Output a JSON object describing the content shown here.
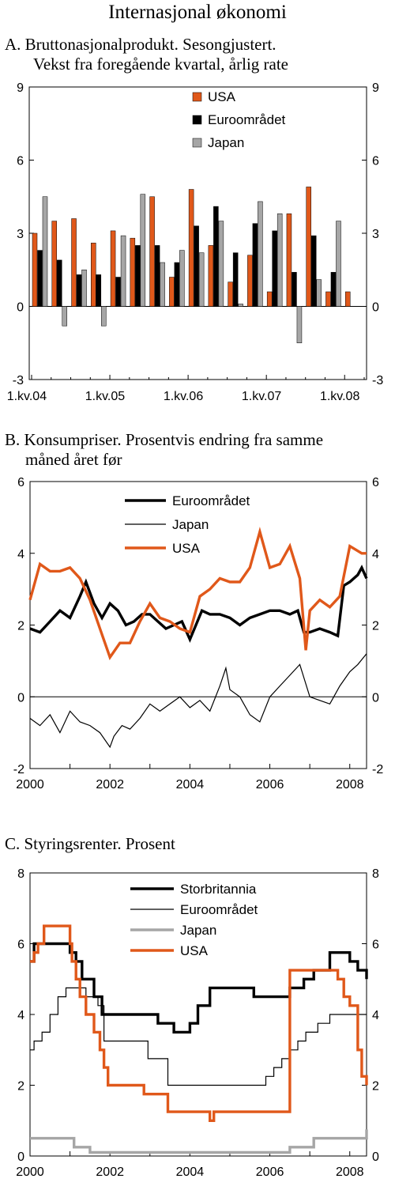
{
  "page_title": "Internasjonal økonomi",
  "colors": {
    "usa": "#e0581a",
    "euro": "#000000",
    "japan": "#a6a6a6",
    "uk": "#000000"
  },
  "chart_data": [
    {
      "id": "A",
      "type": "bar",
      "title_line1": "A.  Bruttonasjonalprodukt. Sesongjustert.",
      "title_line2": "Vekst fra foregående kvartal, årlig rate",
      "ylim": [
        -3,
        9
      ],
      "yticks": [
        -3,
        0,
        3,
        6,
        9
      ],
      "tick_labels": [
        "1.kv.04",
        "1.kv.05",
        "1.kv.06",
        "1.kv.07",
        "1.kv.08"
      ],
      "categories": [
        "1.kv.04",
        "2.kv.04",
        "3.kv.04",
        "4.kv.04",
        "1.kv.05",
        "2.kv.05",
        "3.kv.05",
        "4.kv.05",
        "1.kv.06",
        "2.kv.06",
        "3.kv.06",
        "4.kv.06",
        "1.kv.07",
        "2.kv.07",
        "3.kv.07",
        "4.kv.07",
        "1.kv.08"
      ],
      "series": [
        {
          "name": "USA",
          "color": "#e0581a",
          "values": [
            3.0,
            3.5,
            3.6,
            2.6,
            3.1,
            2.8,
            4.5,
            1.2,
            4.8,
            2.5,
            1.0,
            2.1,
            0.6,
            3.8,
            4.9,
            0.6,
            0.6
          ]
        },
        {
          "name": "Euroområdet",
          "color": "#000000",
          "values": [
            2.3,
            1.9,
            1.3,
            1.3,
            1.2,
            2.5,
            2.5,
            1.8,
            3.3,
            4.1,
            2.2,
            3.4,
            3.1,
            1.4,
            2.9,
            1.4,
            null
          ]
        },
        {
          "name": "Japan",
          "color": "#a6a6a6",
          "values": [
            4.5,
            -0.8,
            1.5,
            -0.8,
            2.9,
            4.6,
            1.8,
            2.3,
            2.2,
            3.5,
            0.1,
            4.3,
            3.8,
            -1.5,
            1.1,
            3.5,
            null
          ]
        }
      ]
    },
    {
      "id": "B",
      "type": "line",
      "title_line1": "B. Konsumpriser. Prosentvis endring fra samme",
      "title_line2": "måned året før",
      "ylim": [
        -2,
        6
      ],
      "yticks": [
        -2,
        0,
        2,
        4,
        6
      ],
      "xlim": [
        2000,
        2008.42
      ],
      "xticks": [
        2000,
        2002,
        2004,
        2006,
        2008
      ],
      "series": [
        {
          "name": "Euroområdet",
          "color": "#000000",
          "width": 3.4,
          "x": [
            2000,
            2000.25,
            2000.5,
            2000.75,
            2001,
            2001.25,
            2001.4,
            2001.6,
            2001.8,
            2002,
            2002.2,
            2002.4,
            2002.6,
            2002.8,
            2003,
            2003.2,
            2003.4,
            2003.6,
            2003.8,
            2004,
            2004.15,
            2004.3,
            2004.5,
            2004.75,
            2005,
            2005.25,
            2005.5,
            2005.75,
            2006,
            2006.25,
            2006.5,
            2006.7,
            2006.85,
            2007,
            2007.25,
            2007.5,
            2007.7,
            2007.85,
            2008,
            2008.2,
            2008.3,
            2008.42
          ],
          "y": [
            1.9,
            1.8,
            2.1,
            2.4,
            2.2,
            2.8,
            3.2,
            2.6,
            2.2,
            2.6,
            2.4,
            2.0,
            2.1,
            2.3,
            2.3,
            2.1,
            1.9,
            2.0,
            2.1,
            1.6,
            2.0,
            2.4,
            2.3,
            2.3,
            2.2,
            2.0,
            2.2,
            2.3,
            2.4,
            2.4,
            2.3,
            2.4,
            1.8,
            1.8,
            1.9,
            1.8,
            1.7,
            3.1,
            3.2,
            3.4,
            3.6,
            3.3
          ]
        },
        {
          "name": "Japan",
          "color": "#000000",
          "width": 1.2,
          "x": [
            2000,
            2000.25,
            2000.5,
            2000.75,
            2001,
            2001.25,
            2001.5,
            2001.75,
            2002,
            2002.1,
            2002.3,
            2002.5,
            2002.75,
            2003,
            2003.25,
            2003.5,
            2003.75,
            2004,
            2004.25,
            2004.5,
            2004.75,
            2004.9,
            2005,
            2005.25,
            2005.5,
            2005.75,
            2006,
            2006.25,
            2006.5,
            2006.75,
            2007,
            2007.25,
            2007.5,
            2007.75,
            2008,
            2008.2,
            2008.42
          ],
          "y": [
            -0.6,
            -0.8,
            -0.5,
            -1.0,
            -0.4,
            -0.7,
            -0.8,
            -1.0,
            -1.4,
            -1.1,
            -0.8,
            -0.9,
            -0.6,
            -0.2,
            -0.4,
            -0.2,
            0.0,
            -0.3,
            -0.1,
            -0.4,
            0.3,
            0.8,
            0.2,
            0.0,
            -0.5,
            -0.7,
            0.0,
            0.3,
            0.6,
            0.9,
            0.0,
            -0.1,
            -0.2,
            0.3,
            0.7,
            0.9,
            1.2
          ]
        },
        {
          "name": "USA",
          "color": "#e0581a",
          "width": 3.4,
          "x": [
            2000,
            2000.25,
            2000.5,
            2000.75,
            2001,
            2001.25,
            2001.5,
            2001.75,
            2002,
            2002.25,
            2002.5,
            2002.75,
            2003,
            2003.25,
            2003.5,
            2003.75,
            2004,
            2004.25,
            2004.5,
            2004.75,
            2005,
            2005.25,
            2005.5,
            2005.75,
            2006,
            2006.25,
            2006.5,
            2006.75,
            2006.9,
            2007,
            2007.25,
            2007.5,
            2007.75,
            2008,
            2008.15,
            2008.3,
            2008.42
          ],
          "y": [
            2.7,
            3.7,
            3.5,
            3.5,
            3.6,
            3.3,
            2.7,
            1.9,
            1.1,
            1.5,
            1.5,
            2.1,
            2.6,
            2.2,
            2.1,
            1.9,
            1.8,
            2.8,
            3.0,
            3.3,
            3.2,
            3.2,
            3.6,
            4.6,
            3.6,
            3.7,
            4.2,
            3.3,
            1.3,
            2.4,
            2.7,
            2.5,
            2.8,
            4.2,
            4.1,
            4.0,
            4.0
          ]
        }
      ]
    },
    {
      "id": "C",
      "type": "line",
      "title_line1": "C.  Styringsrenter. Prosent",
      "ylim": [
        0,
        8
      ],
      "yticks": [
        0,
        2,
        4,
        6,
        8
      ],
      "xlim": [
        2000,
        2008.42
      ],
      "xticks": [
        2000,
        2002,
        2004,
        2006,
        2008
      ],
      "series": [
        {
          "name": "Storbritannia",
          "color": "#000000",
          "width": 3.4,
          "x": [
            2000,
            2000.1,
            2001.0,
            2001.15,
            2001.3,
            2001.6,
            2001.8,
            2003.2,
            2003.6,
            2004.0,
            2004.2,
            2004.5,
            2005.6,
            2006.5,
            2006.85,
            2007.1,
            2007.5,
            2008.0,
            2008.2,
            2008.42
          ],
          "y": [
            5.5,
            6.0,
            5.75,
            5.5,
            5.0,
            4.5,
            4.0,
            3.75,
            3.5,
            3.75,
            4.25,
            4.75,
            4.5,
            4.75,
            5.0,
            5.25,
            5.75,
            5.5,
            5.25,
            5.0
          ]
        },
        {
          "name": "Euroområdet",
          "color": "#000000",
          "width": 1.2,
          "x": [
            2000,
            2000.1,
            2000.3,
            2000.5,
            2000.7,
            2000.9,
            2001.4,
            2001.7,
            2001.85,
            2002.95,
            2003.45,
            2005.9,
            2006.1,
            2006.3,
            2006.5,
            2006.7,
            2006.9,
            2007.2,
            2007.5
          ],
          "y": [
            3.0,
            3.25,
            3.5,
            4.0,
            4.5,
            4.75,
            4.5,
            4.25,
            3.25,
            2.75,
            2.0,
            2.25,
            2.5,
            2.75,
            3.0,
            3.25,
            3.5,
            3.75,
            4.0
          ]
        },
        {
          "name": "Japan",
          "color": "#a6a6a6",
          "width": 3.4,
          "x": [
            2000,
            2001.1,
            2001.5,
            2006.5,
            2007.1,
            2008.42
          ],
          "y": [
            0.5,
            0.25,
            0.1,
            0.25,
            0.5,
            0.75
          ]
        },
        {
          "name": "USA",
          "color": "#e0581a",
          "width": 3.4,
          "x": [
            2000,
            2000.1,
            2000.2,
            2000.35,
            2001.0,
            2001.05,
            2001.15,
            2001.25,
            2001.4,
            2001.6,
            2001.75,
            2001.85,
            2001.95,
            2002.85,
            2003.45,
            2004.5,
            2004.6,
            2006.5,
            2007.7,
            2007.85,
            2008.0,
            2008.2,
            2008.3,
            2008.42
          ],
          "y": [
            5.5,
            5.75,
            6.0,
            6.5,
            6.0,
            5.5,
            5.0,
            4.5,
            4.0,
            3.5,
            3.0,
            2.5,
            2.0,
            1.75,
            1.25,
            1.0,
            1.25,
            5.25,
            5.0,
            4.5,
            4.25,
            3.0,
            2.25,
            2.0
          ]
        }
      ]
    }
  ]
}
